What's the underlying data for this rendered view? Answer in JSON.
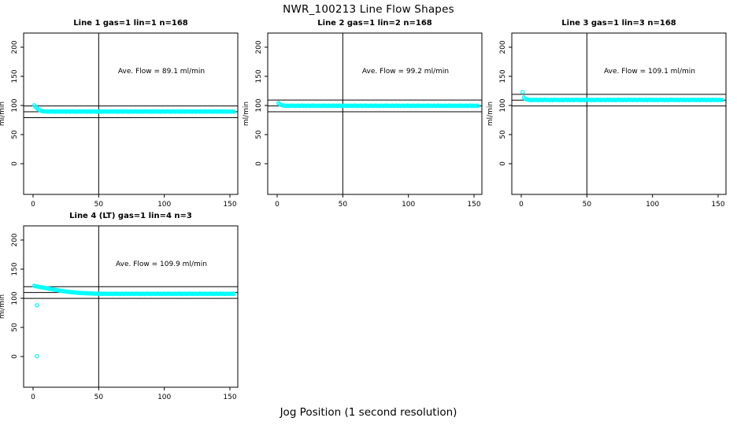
{
  "colors": {
    "point": "#00ffff",
    "axis": "#000000",
    "background": "#ffffff"
  },
  "chart_data": {
    "type": "scatter",
    "title": "NWR_100213  Line Flow Shapes",
    "xlabel": "Jog Position (1 second resolution)",
    "ylabel": "ml/min",
    "xlim": [
      -7.2,
      156
    ],
    "ylim": [
      -52.7,
      224.3
    ],
    "x_ticks": [
      0,
      50,
      100,
      150
    ],
    "y_ticks": [
      0,
      50,
      100,
      150,
      200
    ],
    "grid": false,
    "legend": "none",
    "marker": "open-circle",
    "annotation_anchor": {
      "x": 98,
      "y": 155
    },
    "plots": [
      {
        "title": "Line 1 gas=1 lin=1 n=168",
        "annotation": "Ave. Flow =  89.1  ml/min",
        "ave_flow": 89.1,
        "hlines": [
          99.1,
          89.1,
          79.1
        ],
        "vline": 50,
        "x_start": 1,
        "x_step": 1,
        "y": [
          100.4,
          97.6,
          95.2,
          93.3,
          91.9,
          90.9,
          90.3,
          89.9,
          89.7,
          89.5,
          89.8,
          89.3,
          89.6,
          89.9,
          89.4,
          89.7,
          89.2,
          89.5,
          89.8,
          89.3,
          89.6,
          89.9,
          89.4,
          89.7,
          89.2,
          89.5,
          89.8,
          89.3,
          89.6,
          89.9,
          89.4,
          89.7,
          89.2,
          89.5,
          89.8,
          89.3,
          89.6,
          89.9,
          89.4,
          89.7,
          89.2,
          89.5,
          89.8,
          89.3,
          89.6,
          89.9,
          89.4,
          89.7,
          89.2,
          89.5,
          89.8,
          89.3,
          89.6,
          89.9,
          89.4,
          89.7,
          89.2,
          89.5,
          89.8,
          89.3,
          89.6,
          89.9,
          89.4,
          89.7,
          89.2,
          89.5,
          89.8,
          89.3,
          89.6,
          89.9,
          89.4,
          89.7,
          89.2,
          89.5,
          89.8,
          89.3,
          89.6,
          89.9,
          89.4,
          89.7,
          89.2,
          89.5,
          89.8,
          89.3,
          89.6,
          89.9,
          89.4,
          89.7,
          89.2,
          89.5,
          89.8,
          89.3,
          89.6,
          89.9,
          89.4,
          89.7,
          89.2,
          89.5,
          89.8,
          89.3,
          89.6,
          89.9,
          89.4,
          89.7,
          89.2,
          89.5,
          89.8,
          89.3,
          89.6,
          89.9,
          89.4,
          89.7,
          89.2,
          89.5,
          89.8,
          89.3,
          89.6,
          89.9,
          89.4,
          89.7,
          89.2,
          89.5,
          89.8,
          89.3,
          89.6,
          89.9,
          89.4,
          89.7,
          89.2,
          89.5,
          89.8,
          89.3,
          89.6,
          89.9,
          89.4,
          89.7,
          89.2,
          89.5,
          89.8,
          89.3,
          89.6,
          89.9,
          89.4,
          89.7,
          89.2,
          89.5,
          89.8,
          89.3,
          89.6,
          89.9,
          89.4,
          89.7,
          89.2
        ],
        "extra_points": []
      },
      {
        "title": "Line 2 gas=1 lin=2 n=168",
        "annotation": "Ave. Flow =  99.2  ml/min",
        "ave_flow": 99.2,
        "hlines": [
          109.2,
          99.2,
          89.2
        ],
        "vline": 50,
        "x_start": 1,
        "x_step": 1,
        "y": [
          104.0,
          102.1,
          100.9,
          100.2,
          99.8,
          99.6,
          99.4,
          99.7,
          99.1,
          99.5,
          99.8,
          99.3,
          99.6,
          99.2,
          99.4,
          99.7,
          99.1,
          99.5,
          99.8,
          99.3,
          99.6,
          99.2,
          99.4,
          99.7,
          99.1,
          99.5,
          99.8,
          99.3,
          99.6,
          99.2,
          99.4,
          99.7,
          99.1,
          99.5,
          99.8,
          99.3,
          99.6,
          99.2,
          99.4,
          99.7,
          99.1,
          99.5,
          99.8,
          99.3,
          99.6,
          99.2,
          99.4,
          99.7,
          99.1,
          99.5,
          99.8,
          99.3,
          99.6,
          99.2,
          99.4,
          99.7,
          99.1,
          99.5,
          99.8,
          99.3,
          99.6,
          99.2,
          99.4,
          99.7,
          99.1,
          99.5,
          99.8,
          99.3,
          99.6,
          99.2,
          99.4,
          99.7,
          99.1,
          99.5,
          99.8,
          99.3,
          99.6,
          99.2,
          99.4,
          99.7,
          99.1,
          99.5,
          99.8,
          99.3,
          99.6,
          99.2,
          99.4,
          99.7,
          99.1,
          99.5,
          99.8,
          99.3,
          99.6,
          99.2,
          99.4,
          99.7,
          99.1,
          99.5,
          99.8,
          99.3,
          99.6,
          99.2,
          99.4,
          99.7,
          99.1,
          99.5,
          99.8,
          99.3,
          99.6,
          99.2,
          99.4,
          99.7,
          99.1,
          99.5,
          99.8,
          99.3,
          99.6,
          99.2,
          99.4,
          99.7,
          99.1,
          99.5,
          99.8,
          99.3,
          99.6,
          99.2,
          99.4,
          99.7,
          99.1,
          99.5,
          99.8,
          99.3,
          99.6,
          99.2,
          99.4,
          99.7,
          99.1,
          99.5,
          99.8,
          99.3,
          99.6,
          99.2,
          99.4,
          99.7,
          99.1,
          99.5,
          99.8,
          99.3,
          99.6,
          99.2,
          99.4,
          99.6,
          99.3
        ],
        "extra_points": []
      },
      {
        "title": "Line 3 gas=1 lin=3 n=168",
        "annotation": "Ave. Flow =  109.1  ml/min",
        "ave_flow": 109.1,
        "hlines": [
          119.1,
          109.1,
          99.1
        ],
        "vline": 50,
        "x_start": 1,
        "x_step": 1,
        "y": [
          123.0,
          113.6,
          111.6,
          110.7,
          110.2,
          109.4,
          109.8,
          109.1,
          109.6,
          110.0,
          109.3,
          109.7,
          109.2,
          109.4,
          109.8,
          109.1,
          109.6,
          110.0,
          109.3,
          109.7,
          109.2,
          109.4,
          109.8,
          109.1,
          109.6,
          110.0,
          109.3,
          109.7,
          109.2,
          109.4,
          109.8,
          109.1,
          109.6,
          110.0,
          109.3,
          109.7,
          109.2,
          109.4,
          109.8,
          109.1,
          109.6,
          110.0,
          109.3,
          109.7,
          109.2,
          109.4,
          109.8,
          109.1,
          109.6,
          110.0,
          109.3,
          109.7,
          109.2,
          109.4,
          109.8,
          109.1,
          109.6,
          110.0,
          109.3,
          109.7,
          109.2,
          109.4,
          109.8,
          109.1,
          109.6,
          110.0,
          109.3,
          109.7,
          109.2,
          109.4,
          109.8,
          109.1,
          109.6,
          110.0,
          109.3,
          109.7,
          109.2,
          109.4,
          109.8,
          109.1,
          109.6,
          110.0,
          109.3,
          109.7,
          109.2,
          109.4,
          109.8,
          109.1,
          109.6,
          110.0,
          109.3,
          109.7,
          109.2,
          109.4,
          109.8,
          109.1,
          109.6,
          110.0,
          109.3,
          109.7,
          109.2,
          109.4,
          109.8,
          109.1,
          109.6,
          110.0,
          109.3,
          109.7,
          109.2,
          109.4,
          109.8,
          109.1,
          109.6,
          110.0,
          109.3,
          109.7,
          109.2,
          109.4,
          109.8,
          109.1,
          109.6,
          110.0,
          109.3,
          109.7,
          109.2,
          109.4,
          109.8,
          109.1,
          109.6,
          110.0,
          109.3,
          109.7,
          109.2,
          109.4,
          109.8,
          109.1,
          109.6,
          110.0,
          109.3,
          109.7,
          109.2,
          109.4,
          109.8,
          109.1,
          109.6,
          110.0,
          109.3,
          109.7,
          109.2,
          109.5,
          109.8,
          109.2,
          109.6
        ],
        "extra_points": []
      },
      {
        "title": "Line 4 (LT) gas=1 lin=4 n=3",
        "annotation": "Ave. Flow =  109.9  ml/min",
        "ave_flow": 109.9,
        "hlines": [
          119.9,
          109.9,
          99.9
        ],
        "vline": 50,
        "x_start": 1,
        "x_step": 1,
        "y": [
          121.5,
          120.8,
          120.3,
          119.8,
          119.4,
          119.0,
          118.6,
          118.2,
          117.8,
          117.4,
          117.0,
          116.6,
          116.2,
          115.8,
          115.4,
          115.0,
          114.6,
          114.2,
          113.8,
          113.4,
          113.0,
          112.6,
          112.3,
          112.0,
          111.7,
          111.4,
          111.1,
          110.8,
          110.5,
          110.3,
          110.1,
          109.9,
          109.7,
          109.5,
          109.3,
          109.2,
          109.0,
          108.9,
          108.8,
          108.7,
          108.6,
          108.5,
          108.4,
          108.3,
          108.2,
          108.1,
          108.0,
          107.9,
          107.9,
          107.8,
          107.7,
          108.0,
          107.5,
          107.8,
          108.1,
          107.6,
          107.9,
          107.4,
          107.7,
          108.0,
          107.5,
          107.8,
          108.1,
          107.6,
          107.9,
          107.4,
          107.7,
          108.0,
          107.5,
          107.8,
          108.1,
          107.6,
          107.9,
          107.4,
          107.7,
          108.0,
          107.5,
          107.8,
          108.1,
          107.6,
          107.9,
          107.4,
          107.7,
          108.0,
          107.5,
          107.8,
          108.1,
          107.6,
          107.9,
          107.4,
          107.7,
          108.0,
          107.5,
          107.8,
          108.1,
          107.6,
          107.9,
          107.4,
          107.7,
          108.0,
          107.5,
          107.8,
          108.1,
          107.6,
          107.9,
          107.4,
          107.7,
          108.0,
          107.5,
          107.8,
          108.1,
          107.6,
          107.9,
          107.4,
          107.7,
          108.0,
          107.5,
          107.8,
          108.1,
          107.6,
          107.9,
          107.4,
          107.7,
          108.0,
          107.5,
          107.8,
          108.1,
          107.6,
          107.9,
          107.4,
          107.7,
          108.0,
          107.5,
          107.8,
          108.1,
          107.6,
          107.9,
          107.4,
          107.7,
          108.0,
          107.5,
          107.8,
          108.1,
          107.6,
          107.9,
          107.4,
          107.7,
          107.9,
          107.5,
          107.8,
          107.6,
          108.0,
          107.7
        ],
        "extra_points": [
          [
            3,
            88.0
          ],
          [
            3,
            0.5
          ]
        ]
      }
    ]
  }
}
